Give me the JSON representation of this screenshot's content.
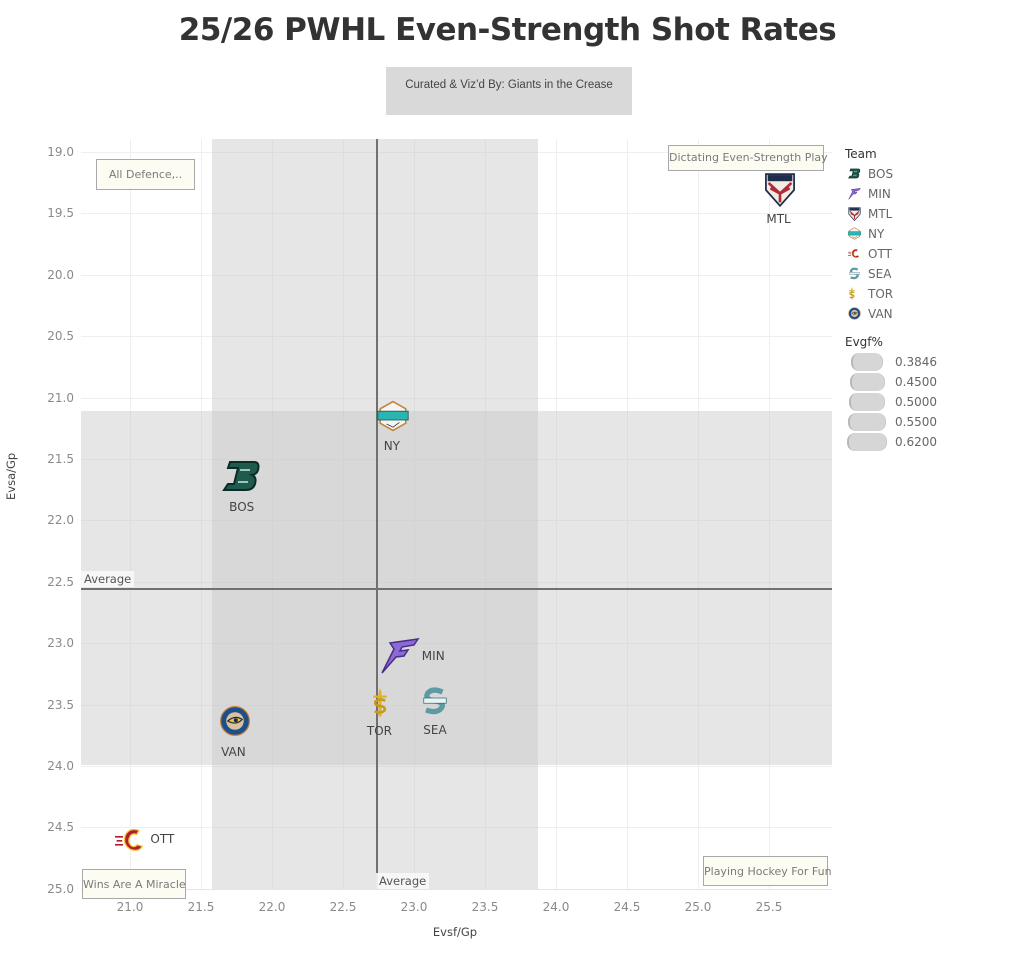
{
  "title": "25/26 PWHL Even-Strength Shot Rates",
  "credit": "Curated & Viz’d By: Giants in the Crease",
  "axes": {
    "xlabel": "Evsf/Gp",
    "ylabel": "Evsa/Gp",
    "xticks": [
      "21.0",
      "21.5",
      "22.0",
      "22.5",
      "23.0",
      "23.5",
      "24.0",
      "24.5",
      "25.0",
      "25.5"
    ],
    "yticks": [
      "19.0",
      "19.5",
      "20.0",
      "20.5",
      "21.0",
      "21.5",
      "22.0",
      "22.5",
      "23.0",
      "23.5",
      "24.0",
      "24.5",
      "25.0"
    ]
  },
  "average_labels": {
    "horizontal": "Average",
    "vertical": "Average"
  },
  "quadrant_annotations": {
    "top_left": "All Defence,..",
    "top_right": "Dictating Even-Strength Play",
    "bottom_left": "Wins Are A Miracle",
    "bottom_right": "Playing Hockey For Fun"
  },
  "legend": {
    "team_title": "Team",
    "teams": [
      {
        "label": "BOS",
        "icon": "bos-logo-icon",
        "color": "#1f5a4e"
      },
      {
        "label": "MIN",
        "icon": "min-logo-icon",
        "color": "#7b5cc7"
      },
      {
        "label": "MTL",
        "icon": "mtl-logo-icon",
        "color": "#8a2432"
      },
      {
        "label": "NY",
        "icon": "ny-logo-icon",
        "color": "#2bb5b0"
      },
      {
        "label": "OTT",
        "icon": "ott-logo-icon",
        "color": "#b11f2e"
      },
      {
        "label": "SEA",
        "icon": "sea-logo-icon",
        "color": "#6aaab3"
      },
      {
        "label": "TOR",
        "icon": "tor-logo-icon",
        "color": "#e0b22b"
      },
      {
        "label": "VAN",
        "icon": "van-logo-icon",
        "color": "#1f4f8b"
      }
    ],
    "size_title": "Evgf%",
    "sizes": [
      "0.3846",
      "0.4500",
      "0.5000",
      "0.5500",
      "0.6200"
    ]
  },
  "chart_data": {
    "type": "scatter",
    "title": "25/26 PWHL Even-Strength Shot Rates",
    "subtitle": "Curated & Viz’d By: Giants in the Crease",
    "xlabel": "Evsf/Gp",
    "ylabel": "Evsa/Gp",
    "xlim": [
      20.65,
      25.93
    ],
    "ylim": [
      18.95,
      25.05
    ],
    "y_reversed": true,
    "grid": true,
    "legend_position": "right",
    "points": [
      {
        "team": "MTL",
        "x": 25.58,
        "y": 19.31
      },
      {
        "team": "NY",
        "x": 22.85,
        "y": 21.15
      },
      {
        "team": "BOS",
        "x": 21.79,
        "y": 21.64
      },
      {
        "team": "MIN",
        "x": 22.9,
        "y": 23.1
      },
      {
        "team": "TOR",
        "x": 22.76,
        "y": 23.49
      },
      {
        "team": "SEA",
        "x": 23.15,
        "y": 23.47
      },
      {
        "team": "VAN",
        "x": 21.74,
        "y": 23.63
      },
      {
        "team": "OTT",
        "x": 21.01,
        "y": 24.6
      }
    ],
    "reference_lines": {
      "x_average": 22.73,
      "y_average": 22.55
    },
    "reference_bands": {
      "x_band": [
        21.58,
        23.87
      ],
      "y_band": [
        21.11,
        23.99
      ]
    },
    "size_legend": {
      "field": "Evgf%",
      "values": [
        0.3846,
        0.45,
        0.5,
        0.55,
        0.62
      ]
    },
    "annotations": [
      "All Defence,..",
      "Dictating Even-Strength Play",
      "Wins Are A Miracle",
      "Playing Hockey For Fun",
      "Average",
      "Average"
    ]
  }
}
